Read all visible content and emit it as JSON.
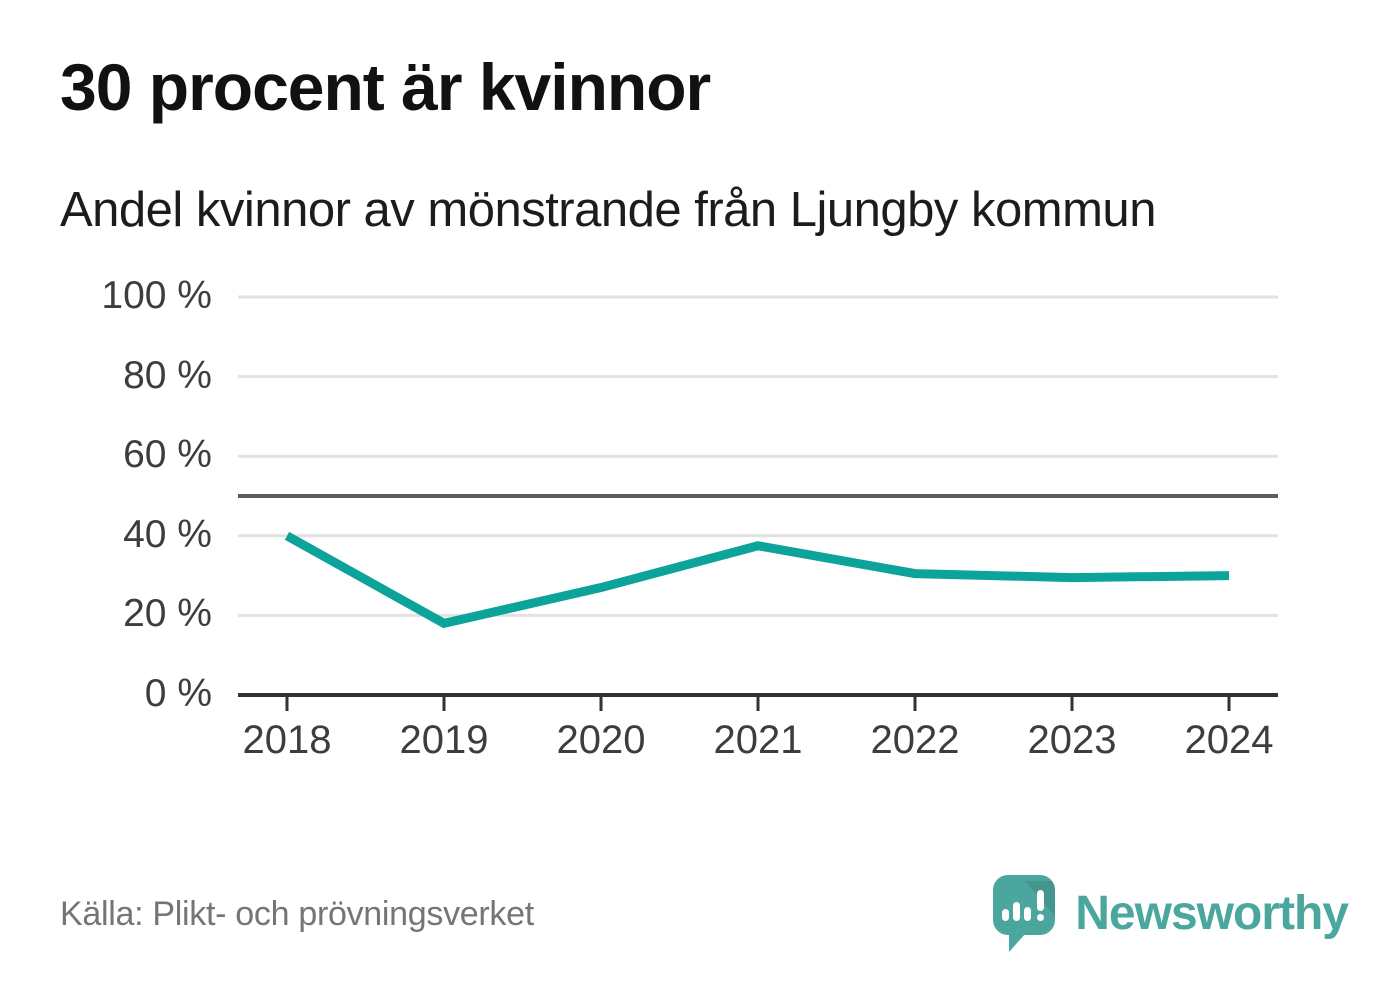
{
  "page": {
    "title": "30 procent är kvinnor",
    "subtitle": "Andel kvinnor av mönstrande från Ljungby kommun",
    "source": "Källa: Plikt- och prövningsverket",
    "logo_text": "Newsworthy"
  },
  "colors": {
    "line": "#0BA39A",
    "grid": "#E2E2E2",
    "reference_line": "#5C5C60",
    "axis": "#333333",
    "logo": "#4BA69D",
    "title_text": "#111111",
    "tick_text": "#3D3D3D",
    "muted_text": "#757575"
  },
  "chart_data": {
    "type": "line",
    "title": "30 procent är kvinnor",
    "subtitle": "Andel kvinnor av mönstrande från Ljungby kommun",
    "categories": [
      "2018",
      "2019",
      "2020",
      "2021",
      "2022",
      "2023",
      "2024"
    ],
    "series": [
      {
        "name": "Andel kvinnor av mönstrande",
        "values": [
          40,
          18,
          27,
          37.5,
          30.5,
          29.5,
          30
        ]
      }
    ],
    "unit": "%",
    "xlabel": "",
    "ylabel": "",
    "ylim": [
      0,
      100
    ],
    "ytick_interval": 20,
    "ytick_labels_top_down": [
      "100 %",
      "80 %",
      "60 %",
      "40 %",
      "20 %",
      "0 %"
    ],
    "reference_line_value": 50,
    "grid": true,
    "legend": false
  }
}
